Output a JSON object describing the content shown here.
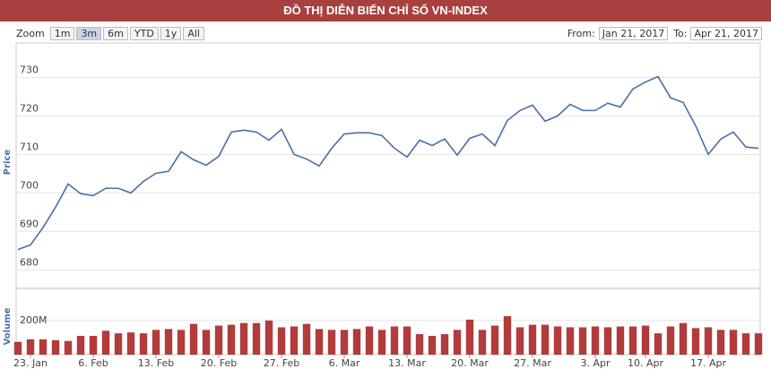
{
  "header": {
    "title": "ĐỒ THỊ DIỄN BIẾN CHỈ SỐ VN-INDEX"
  },
  "range_selector": {
    "label": "Zoom",
    "buttons": [
      "1m",
      "3m",
      "6m",
      "YTD",
      "1y",
      "All"
    ],
    "selected": "3m",
    "from_label": "From:",
    "from": "Jan 21, 2017",
    "to_label": "To:",
    "to": "Apr 21, 2017"
  },
  "chart_data": {
    "type": "stock",
    "categories": [
      null,
      "23. Jan",
      null,
      null,
      null,
      null,
      "6. Feb",
      null,
      null,
      null,
      null,
      "13. Feb",
      null,
      null,
      null,
      null,
      "20. Feb",
      null,
      null,
      null,
      null,
      "27. Feb",
      null,
      null,
      null,
      null,
      "6. Mar",
      null,
      null,
      null,
      null,
      "13. Mar",
      null,
      null,
      null,
      null,
      "20. Mar",
      null,
      null,
      null,
      null,
      "27. Mar",
      null,
      null,
      null,
      null,
      "3. Apr",
      null,
      null,
      null,
      "10. Apr",
      null,
      null,
      null,
      null,
      "17. Apr",
      null,
      null,
      null,
      null
    ],
    "ylabel": "Price",
    "y2label": "Volume",
    "ylim": [
      678,
      738
    ],
    "yticks": [
      680,
      690,
      700,
      710,
      720,
      730
    ],
    "y2lim": [
      0,
      330000000
    ],
    "y2ticks": [
      {
        "value": 200000000,
        "label": "200M"
      }
    ],
    "grid": true,
    "series": [
      {
        "color": "#4a6fa5",
        "values": [
          685.3,
          686.5,
          691,
          696.3,
          702.3,
          699.8,
          699.3,
          701.2,
          701.2,
          700,
          703,
          705.1,
          705.6,
          710.7,
          708.6,
          707.2,
          709.5,
          715.8,
          716.3,
          715.8,
          713.7,
          716.5,
          710,
          708.8,
          707,
          711.6,
          715.3,
          715.6,
          715.6,
          714.9,
          711.6,
          709.3,
          713.7,
          712.3,
          714,
          709.8,
          714.2,
          715.3,
          712.3,
          718.8,
          721.4,
          722.8,
          718.6,
          720,
          723,
          721.4,
          721.4,
          723.3,
          722.3,
          727,
          728.8,
          730.2,
          724.7,
          723.5,
          717.4,
          710,
          714,
          715.8,
          711.9,
          711.6
        ]
      },
      {
        "color": "#b23b3b",
        "axis": "y2",
        "values": [
          75000000,
          90000000,
          90000000,
          85000000,
          80000000,
          110000000,
          110000000,
          140000000,
          125000000,
          130000000,
          125000000,
          145000000,
          150000000,
          145000000,
          180000000,
          145000000,
          170000000,
          175000000,
          185000000,
          185000000,
          200000000,
          160000000,
          165000000,
          180000000,
          150000000,
          145000000,
          145000000,
          150000000,
          165000000,
          145000000,
          165000000,
          165000000,
          120000000,
          110000000,
          120000000,
          145000000,
          205000000,
          145000000,
          170000000,
          225000000,
          160000000,
          175000000,
          175000000,
          165000000,
          160000000,
          160000000,
          165000000,
          160000000,
          165000000,
          165000000,
          170000000,
          125000000,
          165000000,
          185000000,
          155000000,
          160000000,
          145000000,
          145000000,
          125000000,
          125000000
        ]
      }
    ]
  }
}
